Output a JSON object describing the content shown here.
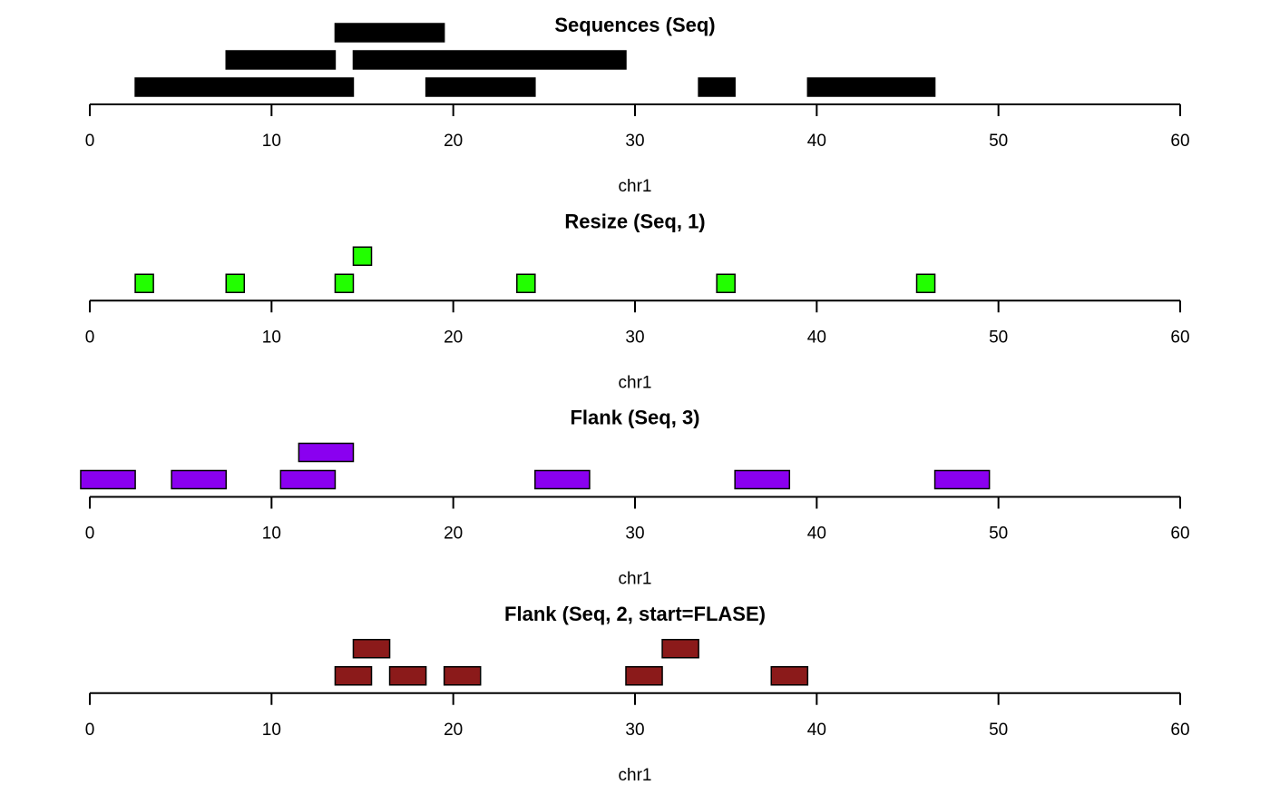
{
  "chart_data": [
    {
      "type": "range",
      "title": "Sequences (Seq)",
      "xlabel": "chr1",
      "xlim": [
        0,
        60
      ],
      "ticks": [
        0,
        10,
        20,
        30,
        40,
        50,
        60
      ],
      "color": "#000000",
      "ranges": [
        {
          "start": 3,
          "end": 14,
          "row": 1
        },
        {
          "start": 8,
          "end": 13,
          "row": 2
        },
        {
          "start": 14,
          "end": 19,
          "row": 3
        },
        {
          "start": 15,
          "end": 29,
          "row": 2
        },
        {
          "start": 19,
          "end": 24,
          "row": 1
        },
        {
          "start": 34,
          "end": 35,
          "row": 1
        },
        {
          "start": 40,
          "end": 46,
          "row": 1
        }
      ]
    },
    {
      "type": "range",
      "title": "Resize (Seq, 1)",
      "xlabel": "chr1",
      "xlim": [
        0,
        60
      ],
      "ticks": [
        0,
        10,
        20,
        30,
        40,
        50,
        60
      ],
      "color": "#22ff00",
      "ranges": [
        {
          "start": 3,
          "end": 3,
          "row": 1
        },
        {
          "start": 8,
          "end": 8,
          "row": 1
        },
        {
          "start": 14,
          "end": 14,
          "row": 1
        },
        {
          "start": 15,
          "end": 15,
          "row": 2
        },
        {
          "start": 24,
          "end": 24,
          "row": 1
        },
        {
          "start": 35,
          "end": 35,
          "row": 1
        },
        {
          "start": 46,
          "end": 46,
          "row": 1
        }
      ]
    },
    {
      "type": "range",
      "title": "Flank (Seq, 3)",
      "xlabel": "chr1",
      "xlim": [
        0,
        60
      ],
      "ticks": [
        0,
        10,
        20,
        30,
        40,
        50,
        60
      ],
      "color": "#8a00f0",
      "ranges": [
        {
          "start": 0,
          "end": 2,
          "row": 1
        },
        {
          "start": 5,
          "end": 7,
          "row": 1
        },
        {
          "start": 11,
          "end": 13,
          "row": 1
        },
        {
          "start": 12,
          "end": 14,
          "row": 2
        },
        {
          "start": 25,
          "end": 27,
          "row": 1
        },
        {
          "start": 36,
          "end": 38,
          "row": 1
        },
        {
          "start": 47,
          "end": 49,
          "row": 1
        }
      ]
    },
    {
      "type": "range",
      "title": "Flank (Seq, 2, start=FLASE)",
      "xlabel": "chr1",
      "xlim": [
        0,
        60
      ],
      "ticks": [
        0,
        10,
        20,
        30,
        40,
        50,
        60
      ],
      "color": "#8b1a1a",
      "ranges": [
        {
          "start": 14,
          "end": 15,
          "row": 1
        },
        {
          "start": 15,
          "end": 16,
          "row": 2
        },
        {
          "start": 17,
          "end": 18,
          "row": 1
        },
        {
          "start": 20,
          "end": 21,
          "row": 1
        },
        {
          "start": 30,
          "end": 31,
          "row": 1
        },
        {
          "start": 32,
          "end": 33,
          "row": 2
        },
        {
          "start": 38,
          "end": 39,
          "row": 1
        }
      ]
    }
  ]
}
